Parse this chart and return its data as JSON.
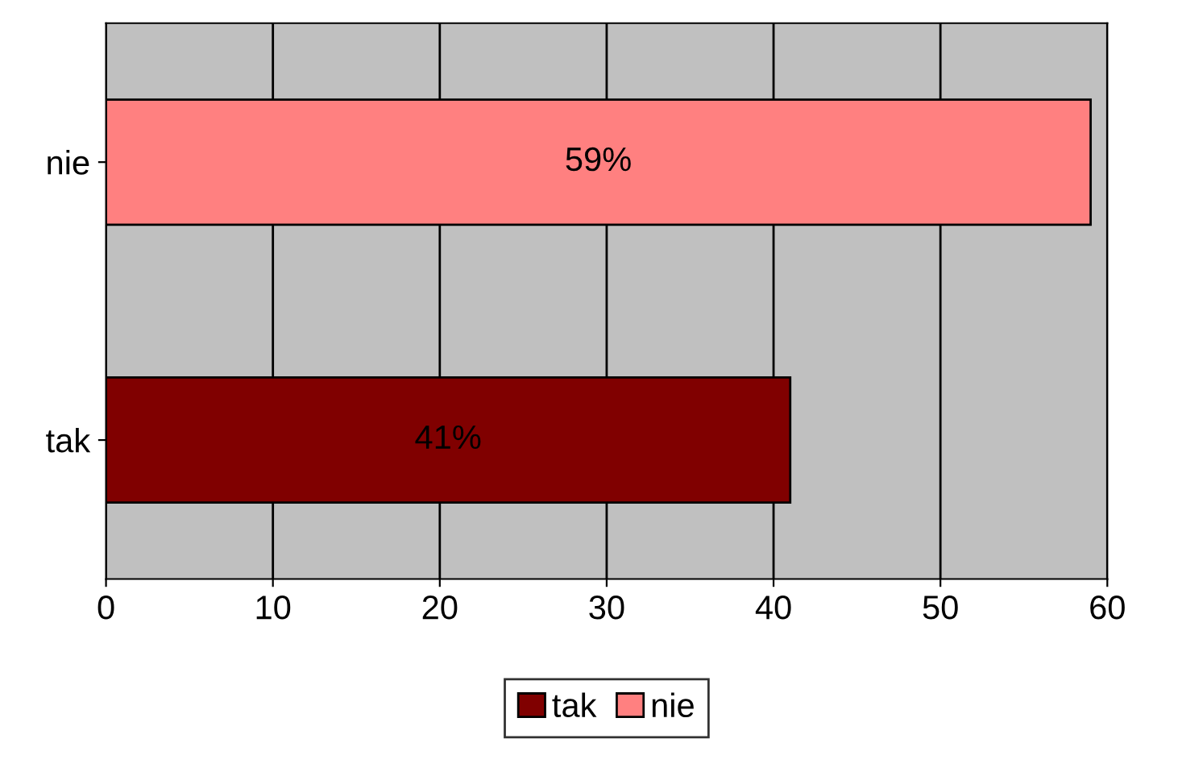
{
  "chart_data": {
    "type": "bar",
    "orientation": "horizontal",
    "categories": [
      "nie",
      "tak"
    ],
    "series": [
      {
        "name": "tak",
        "color": "#800000",
        "values": [
          null,
          41
        ],
        "value_labels": [
          null,
          "41%"
        ]
      },
      {
        "name": "nie",
        "color": "#ff8080",
        "values": [
          59,
          null
        ],
        "value_labels": [
          "59%",
          null
        ]
      }
    ],
    "xlim": [
      0,
      60
    ],
    "xticks": [
      0,
      10,
      20,
      30,
      40,
      50,
      60
    ],
    "grid": "x",
    "legend": "bottom"
  }
}
